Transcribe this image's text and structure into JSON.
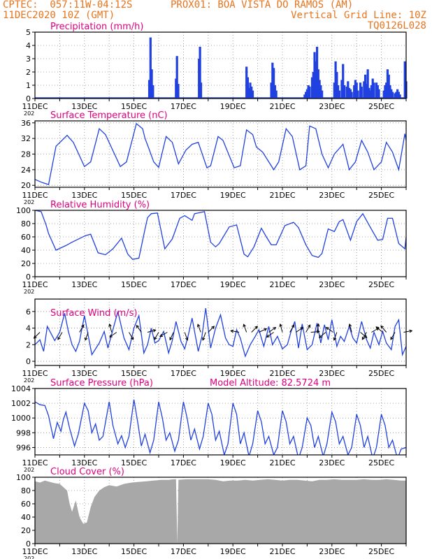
{
  "header": {
    "line1_left": "CPTEC:  057:11W-04:12S",
    "line1_right": "PROX01: BOA VISTA DO RAMOS (AM)",
    "line2_left": "11DEC2020 10Z (GMT)",
    "line2_right": "Vertical Grid Line: 10Z",
    "line3_right": "TQ0126L028"
  },
  "colors": {
    "header": "#e8741e",
    "title": "#e0007f",
    "line": "#2040e0",
    "bar": "#2040e0",
    "cloud": "#a8a8a8"
  },
  "x_tick_labels": [
    "11DEC",
    "13DEC",
    "15DEC",
    "17DEC",
    "19DEC",
    "21DEC",
    "23DEC",
    "25DEC"
  ],
  "x_year_fragment": "202",
  "chart_data": [
    {
      "type": "bar",
      "title": "Precipitation (mm/h)",
      "ylim": [
        0,
        5
      ],
      "yticks": [
        "0",
        "1",
        "2",
        "3",
        "4",
        "5"
      ],
      "x_unit": "days since 11DEC 10Z",
      "bars": [
        [
          4.62,
          1.4
        ],
        [
          4.67,
          4.6
        ],
        [
          4.72,
          2.2
        ],
        [
          4.77,
          1.0
        ],
        [
          5.7,
          1.5
        ],
        [
          5.74,
          3.2
        ],
        [
          5.79,
          1.1
        ],
        [
          6.63,
          3.0
        ],
        [
          6.67,
          3.9
        ],
        [
          6.71,
          1.2
        ],
        [
          8.55,
          2.4
        ],
        [
          8.6,
          1.6
        ],
        [
          8.65,
          0.8
        ],
        [
          8.7,
          1.2
        ],
        [
          8.75,
          0.9
        ],
        [
          8.8,
          0.6
        ],
        [
          9.55,
          1.2
        ],
        [
          9.6,
          2.7
        ],
        [
          9.65,
          2.3
        ],
        [
          9.7,
          1.0
        ],
        [
          9.75,
          0.6
        ],
        [
          10.9,
          0.3
        ],
        [
          10.95,
          0.5
        ],
        [
          11.0,
          0.7
        ],
        [
          11.05,
          1.0
        ],
        [
          11.1,
          0.9
        ],
        [
          11.2,
          1.6
        ],
        [
          11.25,
          2.0
        ],
        [
          11.3,
          3.5
        ],
        [
          11.35,
          2.8
        ],
        [
          11.4,
          3.9
        ],
        [
          11.45,
          2.2
        ],
        [
          11.5,
          1.4
        ],
        [
          11.55,
          1.0
        ],
        [
          11.6,
          0.6
        ],
        [
          12.1,
          1.2
        ],
        [
          12.15,
          2.8
        ],
        [
          12.2,
          2.0
        ],
        [
          12.25,
          1.0
        ],
        [
          12.3,
          0.6
        ],
        [
          12.4,
          1.4
        ],
        [
          12.45,
          2.6
        ],
        [
          12.5,
          1.0
        ],
        [
          12.6,
          0.9
        ],
        [
          12.65,
          1.3
        ],
        [
          12.7,
          0.8
        ],
        [
          12.75,
          0.7
        ],
        [
          12.8,
          0.5
        ],
        [
          12.9,
          1.0
        ],
        [
          12.95,
          1.4
        ],
        [
          13.0,
          1.2
        ],
        [
          13.05,
          0.6
        ],
        [
          13.15,
          1.2
        ],
        [
          13.2,
          0.9
        ],
        [
          13.3,
          1.3
        ],
        [
          13.35,
          1.8
        ],
        [
          13.4,
          1.1
        ],
        [
          13.45,
          2.2
        ],
        [
          13.5,
          0.8
        ],
        [
          13.55,
          0.6
        ],
        [
          13.6,
          1.0
        ],
        [
          13.65,
          1.5
        ],
        [
          13.7,
          1.2
        ],
        [
          13.8,
          1.2
        ],
        [
          13.85,
          1.0
        ],
        [
          13.9,
          0.7
        ],
        [
          14.1,
          0.6
        ],
        [
          14.15,
          1.0
        ],
        [
          14.2,
          1.2
        ],
        [
          14.25,
          2.2
        ],
        [
          14.3,
          1.8
        ],
        [
          14.35,
          1.0
        ],
        [
          14.4,
          0.7
        ],
        [
          14.45,
          0.5
        ],
        [
          14.55,
          0.4
        ],
        [
          14.6,
          0.5
        ],
        [
          14.65,
          0.7
        ],
        [
          14.7,
          0.5
        ],
        [
          14.75,
          0.3
        ],
        [
          14.95,
          2.8
        ],
        [
          15.0,
          1.3
        ]
      ]
    },
    {
      "type": "line",
      "title": "Surface Temperature (nC)",
      "ylim": [
        19.5,
        36.5
      ],
      "yticks": [
        "20",
        "24",
        "28",
        "32",
        "36"
      ],
      "x_unit": "days since 11DEC 10Z",
      "x": [
        0,
        0.3,
        0.55,
        0.85,
        1.3,
        1.55,
        2.0,
        2.25,
        2.6,
        2.85,
        3.45,
        3.7,
        4.1,
        4.35,
        4.45,
        4.6,
        4.8,
        5.0,
        5.3,
        5.55,
        5.8,
        6.1,
        6.35,
        6.6,
        6.95,
        7.1,
        7.4,
        7.6,
        8.05,
        8.3,
        8.55,
        8.8,
        8.95,
        9.2,
        9.65,
        9.85,
        10.15,
        10.4,
        10.7,
        10.95,
        11.1,
        11.35,
        11.6,
        11.85,
        12.1,
        12.45,
        12.7,
        12.95,
        13.2,
        13.45,
        13.7,
        14.0,
        14.2,
        14.45,
        14.7,
        14.95,
        15.0
      ],
      "y": [
        21.5,
        20.7,
        20.2,
        30.0,
        32.8,
        31.0,
        24.8,
        26.0,
        34.5,
        33.0,
        24.8,
        26.0,
        35.8,
        34.5,
        32.0,
        29.5,
        26.0,
        24.6,
        32.5,
        31.0,
        25.5,
        29.0,
        30.5,
        31.0,
        24.5,
        25.0,
        32.5,
        31.5,
        24.5,
        25.0,
        34.2,
        33.0,
        29.8,
        28.5,
        24.0,
        26.0,
        34.5,
        32.5,
        24.0,
        25.0,
        35.2,
        34.5,
        28.0,
        24.5,
        28.0,
        30.5,
        24.0,
        26.0,
        31.5,
        28.5,
        24.0,
        26.0,
        31.0,
        28.5,
        24.0,
        33.2,
        31.5
      ]
    },
    {
      "type": "line",
      "title": "Relative Humidity (%)",
      "ylim": [
        0,
        100
      ],
      "yticks": [
        "0",
        "20",
        "40",
        "60",
        "80",
        "100"
      ],
      "x_unit": "days since 11DEC 10Z",
      "x": [
        0,
        0.25,
        0.45,
        0.55,
        0.85,
        1.25,
        1.5,
        2.05,
        2.25,
        2.55,
        2.85,
        3.15,
        3.5,
        3.75,
        3.95,
        4.2,
        4.45,
        4.55,
        4.7,
        4.95,
        5.25,
        5.55,
        5.85,
        6.05,
        6.35,
        6.45,
        6.6,
        6.85,
        7.1,
        7.3,
        7.45,
        7.85,
        8.15,
        8.45,
        8.6,
        8.85,
        9.15,
        9.35,
        9.55,
        9.75,
        10.1,
        10.45,
        10.65,
        10.95,
        11.2,
        11.45,
        11.6,
        11.85,
        12.1,
        12.3,
        12.45,
        12.75,
        13.0,
        13.25,
        13.5,
        13.85,
        14.05,
        14.25,
        14.45,
        14.7,
        14.95,
        15.0
      ],
      "y": [
        100,
        98,
        78,
        65,
        40,
        47,
        52,
        62,
        64,
        36,
        33,
        42,
        58,
        34,
        26,
        28,
        72,
        89,
        95,
        96,
        42,
        57,
        88,
        92,
        85,
        95,
        96,
        98,
        52,
        45,
        50,
        75,
        78,
        34,
        30,
        45,
        73,
        60,
        48,
        48,
        77,
        82,
        74,
        48,
        32,
        29,
        35,
        72,
        68,
        83,
        86,
        55,
        83,
        95,
        78,
        55,
        56,
        88,
        88,
        50,
        42,
        60
      ]
    },
    {
      "type": "line",
      "title": "Surface Wind (m/s)",
      "ylim": [
        -0.5,
        7.5
      ],
      "yticks": [
        "0",
        "2",
        "4",
        "6"
      ],
      "x_unit": "days since 11DEC 10Z",
      "x": [
        0,
        0.2,
        0.35,
        0.5,
        0.8,
        1.0,
        1.2,
        1.35,
        1.5,
        1.65,
        1.8,
        2.0,
        2.3,
        2.6,
        2.8,
        2.95,
        3.15,
        3.35,
        3.6,
        3.8,
        4.0,
        4.2,
        4.4,
        4.55,
        4.7,
        4.85,
        5.0,
        5.2,
        5.4,
        5.55,
        5.7,
        5.9,
        6.05,
        6.2,
        6.35,
        6.6,
        6.75,
        6.9,
        7.1,
        7.3,
        7.5,
        7.7,
        7.85,
        8.0,
        8.15,
        8.3,
        8.5,
        8.7,
        8.9,
        9.05,
        9.25,
        9.45,
        9.6,
        9.8,
        10.0,
        10.2,
        10.35,
        10.5,
        10.65,
        10.8,
        11.0,
        11.2,
        11.4,
        11.55,
        11.7,
        11.85,
        12.0,
        12.2,
        12.35,
        12.5,
        12.7,
        12.85,
        13.0,
        13.2,
        13.4,
        13.55,
        13.7,
        13.9,
        14.05,
        14.2,
        14.4,
        14.55,
        14.7,
        14.85,
        15.0
      ],
      "y": [
        2.0,
        2.6,
        1.2,
        4.2,
        2.5,
        3.5,
        5.8,
        3.6,
        2.0,
        1.2,
        2.4,
        5.5,
        0.8,
        2.2,
        3.6,
        1.6,
        3.8,
        6.0,
        2.8,
        1.4,
        4.0,
        5.5,
        1.0,
        2.0,
        4.0,
        2.2,
        2.5,
        3.6,
        1.0,
        2.5,
        4.8,
        2.4,
        1.5,
        3.2,
        5.2,
        1.2,
        3.0,
        6.4,
        1.6,
        4.0,
        5.6,
        2.8,
        2.0,
        1.8,
        3.8,
        2.8,
        0.6,
        2.0,
        3.0,
        3.8,
        1.8,
        4.2,
        2.0,
        3.0,
        1.5,
        2.0,
        3.6,
        4.8,
        1.6,
        4.5,
        1.4,
        2.0,
        4.6,
        2.2,
        4.4,
        2.6,
        5.0,
        1.8,
        3.0,
        2.4,
        4.2,
        2.8,
        2.2,
        4.8,
        2.6,
        1.6,
        3.5,
        2.0,
        3.6,
        2.2,
        1.4,
        4.2,
        5.0,
        0.8,
        1.8
      ],
      "arrows": [
        [
          0.2,
          225
        ],
        [
          1.1,
          210
        ],
        [
          1.8,
          30
        ],
        [
          2.15,
          200
        ],
        [
          3.1,
          345
        ],
        [
          3.3,
          235
        ],
        [
          3.8,
          150
        ],
        [
          4.3,
          325
        ],
        [
          4.55,
          75
        ],
        [
          5.0,
          210
        ],
        [
          5.35,
          240
        ],
        [
          5.6,
          205
        ],
        [
          6.05,
          160
        ],
        [
          6.7,
          340
        ],
        [
          6.9,
          200
        ],
        [
          7.0,
          45
        ],
        [
          8.25,
          280
        ],
        [
          8.55,
          340
        ],
        [
          8.75,
          45
        ],
        [
          9.05,
          65
        ],
        [
          9.45,
          55
        ],
        [
          9.65,
          235
        ],
        [
          10.0,
          345
        ],
        [
          10.3,
          30
        ],
        [
          10.55,
          55
        ],
        [
          10.95,
          30
        ],
        [
          11.15,
          85
        ],
        [
          11.4,
          10
        ],
        [
          11.75,
          230
        ],
        [
          12.05,
          305
        ],
        [
          12.2,
          200
        ],
        [
          12.8,
          345
        ],
        [
          13.15,
          130
        ],
        [
          13.4,
          210
        ],
        [
          13.6,
          60
        ],
        [
          14.05,
          310
        ],
        [
          14.2,
          320
        ],
        [
          14.55,
          210
        ],
        [
          14.9,
          80
        ]
      ]
    },
    {
      "type": "line",
      "title": "Surface Pressure (hPa)",
      "annotation": "Model Altitude: 82.5724 m",
      "ylim": [
        995,
        1004
      ],
      "yticks": [
        "996",
        "998",
        "1000",
        "1002",
        "1004"
      ],
      "x_unit": "days since 11DEC 10Z",
      "x": [
        0,
        0.2,
        0.4,
        0.55,
        0.75,
        0.9,
        1.05,
        1.15,
        1.25,
        1.4,
        1.6,
        1.75,
        2.0,
        2.15,
        2.3,
        2.45,
        2.6,
        2.75,
        3.0,
        3.15,
        3.35,
        3.5,
        3.65,
        3.8,
        4.0,
        4.15,
        4.3,
        4.45,
        4.65,
        4.8,
        5.0,
        5.15,
        5.3,
        5.45,
        5.65,
        5.8,
        6.0,
        6.15,
        6.3,
        6.45,
        6.65,
        6.8,
        7.0,
        7.15,
        7.3,
        7.45,
        7.65,
        7.8,
        8.0,
        8.15,
        8.3,
        8.45,
        8.65,
        8.8,
        9.0,
        9.15,
        9.3,
        9.45,
        9.65,
        9.8,
        10.0,
        10.15,
        10.3,
        10.45,
        10.65,
        10.8,
        11.0,
        11.15,
        11.3,
        11.45,
        11.65,
        11.8,
        12.0,
        12.15,
        12.3,
        12.45,
        12.65,
        12.8,
        13.0,
        13.15,
        13.3,
        13.45,
        13.65,
        13.8,
        14.0,
        14.15,
        14.3,
        14.45,
        14.65,
        14.8,
        15.0
      ],
      "y": [
        1002.2,
        1001.8,
        1001.7,
        1000.3,
        997.2,
        999.4,
        998.2,
        999.8,
        1000.8,
        998.6,
        996.2,
        997.8,
        1002.0,
        1001.0,
        998.0,
        999.2,
        997.0,
        997.5,
        1002.2,
        999.0,
        996.5,
        997.6,
        996.0,
        997.5,
        1002.5,
        999.5,
        996.2,
        997.8,
        995.3,
        997.0,
        1002.2,
        1000.0,
        997.0,
        998.0,
        995.5,
        997.0,
        1002.2,
        1000.0,
        997.0,
        998.5,
        995.8,
        997.5,
        1002.0,
        1000.5,
        997.0,
        998.2,
        995.0,
        996.5,
        1002.0,
        1000.5,
        996.5,
        998.0,
        994.8,
        996.5,
        1001.0,
        999.5,
        996.5,
        997.5,
        995.0,
        996.0,
        1001.0,
        999.5,
        996.5,
        997.5,
        994.5,
        996.0,
        1000.0,
        999.0,
        996.0,
        997.5,
        994.8,
        996.5,
        1000.8,
        999.5,
        996.5,
        997.5,
        995.0,
        996.0,
        1000.5,
        999.0,
        996.0,
        997.5,
        994.5,
        996.0,
        1000.5,
        999.0,
        996.0,
        997.0,
        994.5,
        995.8,
        996.0
      ]
    },
    {
      "type": "area",
      "title": "Cloud Cover (%)",
      "ylim": [
        0,
        100
      ],
      "yticks": [
        "0",
        "20",
        "40",
        "60",
        "80",
        "100"
      ],
      "x_unit": "days since 11DEC 10Z",
      "x": [
        0,
        0.2,
        0.4,
        0.6,
        0.8,
        1.0,
        1.15,
        1.3,
        1.4,
        1.5,
        1.65,
        1.8,
        1.95,
        2.1,
        2.25,
        2.4,
        2.6,
        2.8,
        3.0,
        3.3,
        3.6,
        3.9,
        4.2,
        4.5,
        4.8,
        5.1,
        5.4,
        5.6,
        5.7,
        5.75,
        5.8,
        6.1,
        6.4,
        6.7,
        7.0,
        7.3,
        7.6,
        7.9,
        8.2,
        8.5,
        8.8,
        9.1,
        9.4,
        9.7,
        10.0,
        10.3,
        10.6,
        10.9,
        11.2,
        11.5,
        11.8,
        12.1,
        12.4,
        12.7,
        13.0,
        13.3,
        13.6,
        13.9,
        14.2,
        14.5,
        14.8,
        15.0
      ],
      "y": [
        94,
        92,
        95,
        93,
        91,
        90,
        85,
        80,
        60,
        48,
        65,
        40,
        30,
        32,
        55,
        70,
        80,
        85,
        88,
        86,
        90,
        92,
        93,
        94,
        95,
        96,
        96,
        97,
        97,
        0,
        96,
        97,
        97,
        97,
        97,
        96,
        94,
        95,
        95,
        96,
        95,
        96,
        97,
        96,
        95,
        96,
        96,
        95,
        94,
        96,
        96,
        97,
        96,
        96,
        96,
        97,
        96,
        96,
        97,
        96,
        95,
        95
      ]
    }
  ]
}
